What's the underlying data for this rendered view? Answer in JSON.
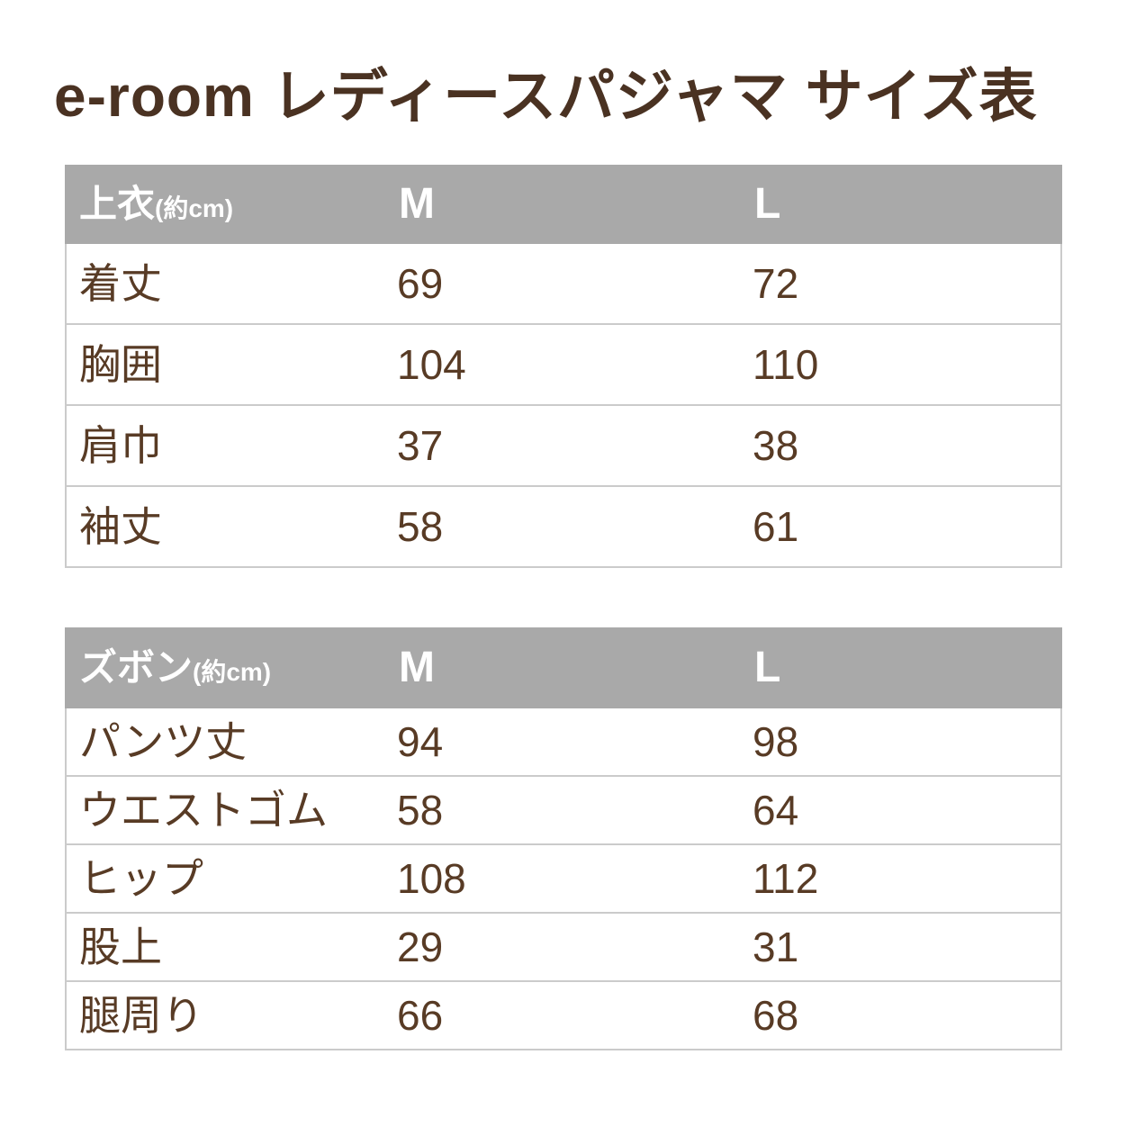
{
  "page": {
    "title": "e-room レディースパジャマ サイズ表"
  },
  "colors": {
    "title-color": "#4a3222",
    "text-color": "#583b25",
    "header-bg": "#a9a9a9",
    "header-text": "#ffffff",
    "border-color": "#cbcbcb",
    "page-bg": "#ffffff"
  },
  "tables": [
    {
      "header": {
        "label": "上衣",
        "unit": "(約cm)",
        "col_m": "M",
        "col_l": "L"
      },
      "rows": [
        {
          "label": "着丈",
          "m": "69",
          "l": "72"
        },
        {
          "label": "胸囲",
          "m": "104",
          "l": "110"
        },
        {
          "label": "肩巾",
          "m": "37",
          "l": "38"
        },
        {
          "label": "袖丈",
          "m": "58",
          "l": "61"
        }
      ]
    },
    {
      "header": {
        "label": "ズボン",
        "unit": "(約cm)",
        "col_m": "M",
        "col_l": "L"
      },
      "rows": [
        {
          "label": "パンツ丈",
          "m": "94",
          "l": "98"
        },
        {
          "label": "ウエストゴム",
          "m": "58",
          "l": "64"
        },
        {
          "label": "ヒップ",
          "m": "108",
          "l": "112"
        },
        {
          "label": "股上",
          "m": "29",
          "l": "31"
        },
        {
          "label": "腿周り",
          "m": "66",
          "l": "68"
        }
      ]
    }
  ]
}
